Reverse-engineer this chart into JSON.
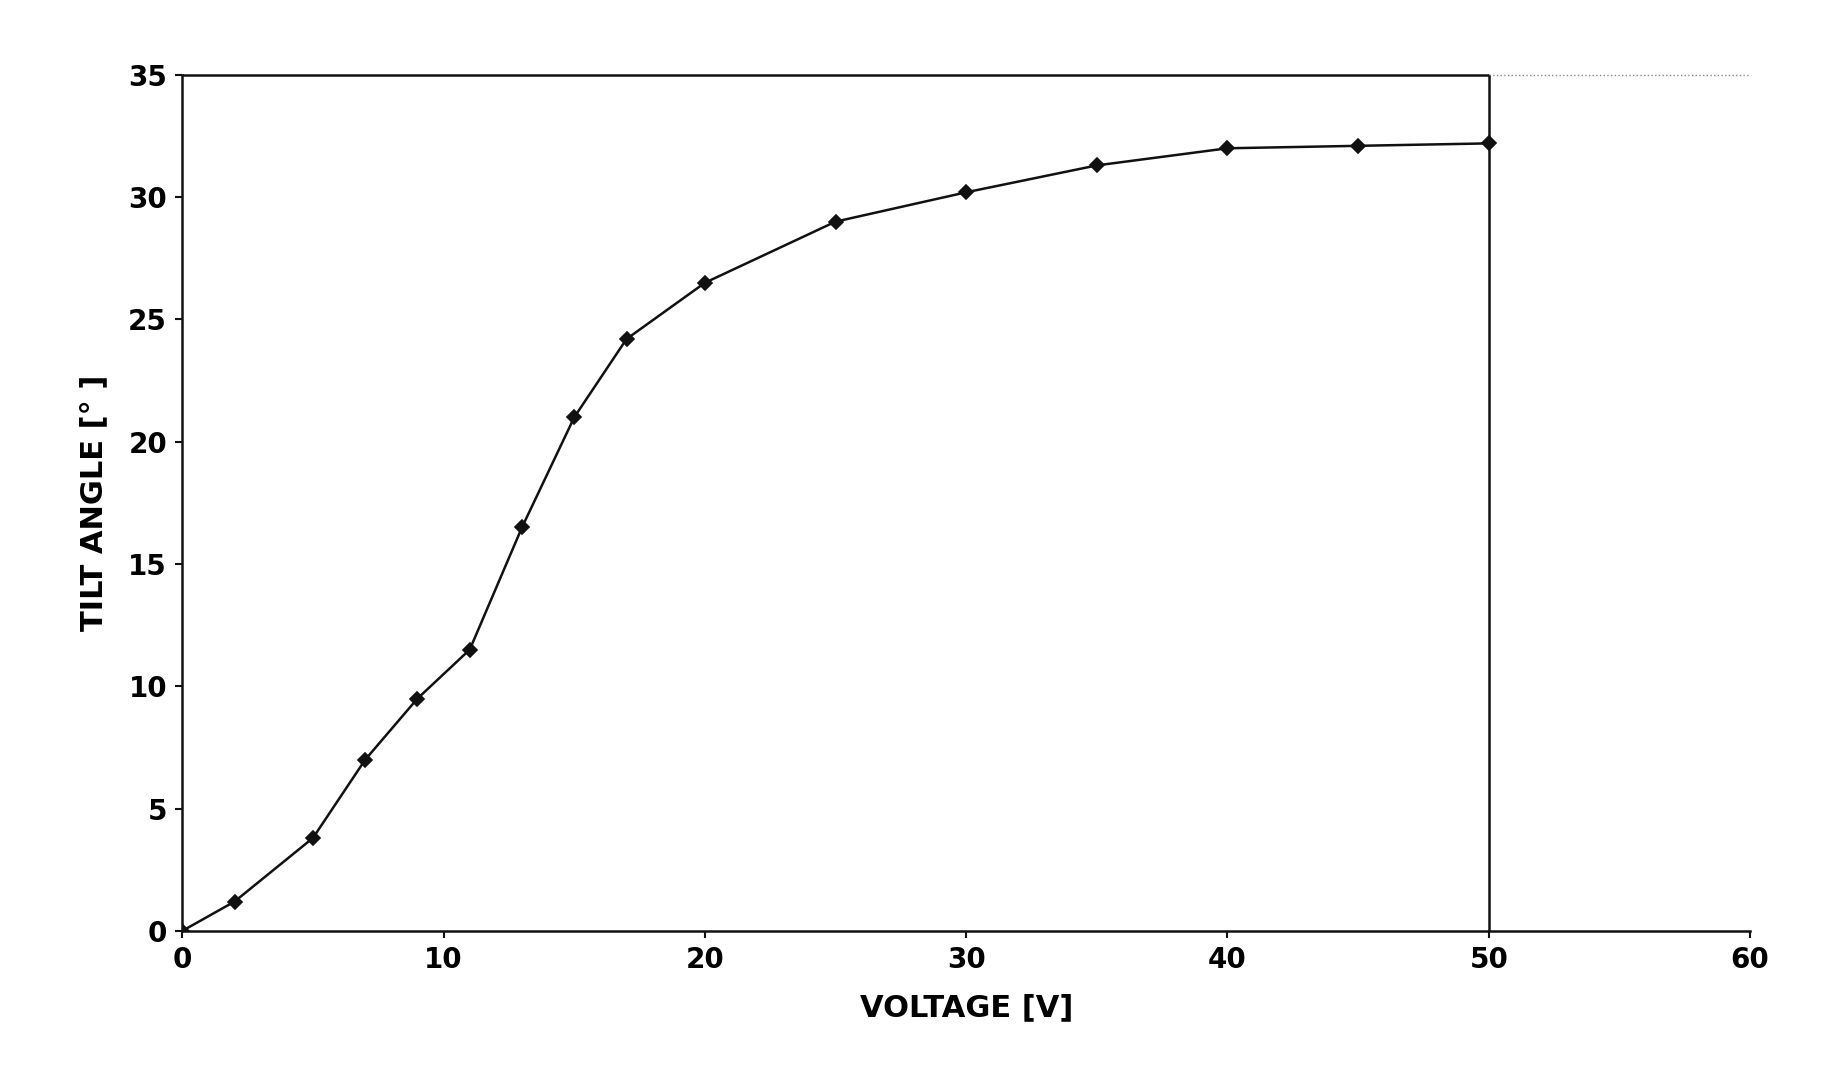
{
  "x": [
    0,
    2,
    5,
    7,
    9,
    11,
    13,
    15,
    17,
    20,
    25,
    30,
    35,
    40,
    45,
    50
  ],
  "y": [
    0,
    1.2,
    3.8,
    7.0,
    9.5,
    11.5,
    16.5,
    21.0,
    24.2,
    26.5,
    29.0,
    30.2,
    31.3,
    32.0,
    32.1,
    32.2
  ],
  "xlabel": "VOLTAGE [V]",
  "ylabel": "TILT ANGLE [° ]",
  "xlim": [
    0,
    60
  ],
  "ylim": [
    0,
    35
  ],
  "xticks": [
    0,
    10,
    20,
    30,
    40,
    50,
    60
  ],
  "yticks": [
    0,
    5,
    10,
    15,
    20,
    25,
    30,
    35
  ],
  "line_color": "#111111",
  "marker": "D",
  "marker_size": 7,
  "marker_facecolor": "#111111",
  "linewidth": 1.8,
  "background_color": "#ffffff",
  "xlabel_fontsize": 22,
  "ylabel_fontsize": 22,
  "tick_fontsize": 20,
  "spine_color": "#111111",
  "spine_linewidth": 1.8,
  "top_border_x_end": 50,
  "right_border_x": 50
}
